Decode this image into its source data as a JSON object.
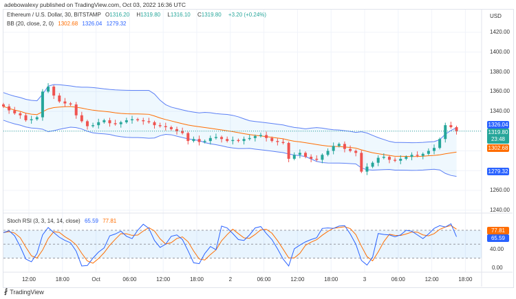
{
  "header": {
    "published": "adebowalexy published on TradingView.com, Oct 03, 2022 16:36 UTC"
  },
  "legend": {
    "symbol": "Ethereum / U.S. Dollar, 30, BITSTAMP",
    "o_label": "O",
    "o": "1316.20",
    "h_label": "H",
    "h": "1319.80",
    "l_label": "L",
    "l": "1316.10",
    "c_label": "C",
    "c": "1319.80",
    "change": "+3.20 (+0.24%)",
    "bb_label": "BB (20, close, 2, 0)",
    "bb_basis": "1302.68",
    "bb_upper": "1326.04",
    "bb_lower": "1279.32",
    "stoch_label": "Stoch RSI (3, 3, 14, 14, close)",
    "stoch_k": "65.59",
    "stoch_d": "77.81"
  },
  "price_axis": {
    "currency": "USD",
    "ticks": [
      "1420.00",
      "1400.00",
      "1380.00",
      "1360.00",
      "1340.00",
      "1260.00",
      "1240.00"
    ],
    "tags": {
      "upper": "1326.04",
      "last": "1319.80",
      "countdown": "23:48",
      "basis": "1302.68",
      "lower": "1279.32"
    }
  },
  "rsi_axis": {
    "ticks": [
      "40.00",
      "0.00"
    ],
    "tags": {
      "d": "77.81",
      "k": "65.59"
    }
  },
  "time_axis": [
    "12:00",
    "18:00",
    "Oct",
    "06:00",
    "12:00",
    "18:00",
    "2",
    "06:00",
    "12:00",
    "18:00",
    "3",
    "06:00",
    "12:00",
    "18:00"
  ],
  "colors": {
    "up": "#26a69a",
    "down": "#ef5350",
    "bb_basis": "#ff6d00",
    "bb_band": "#2962ff",
    "k": "#2962ff",
    "d": "#ff6d00"
  },
  "footer": {
    "brand": "TradingView"
  },
  "chart_data": {
    "type": "candlestick",
    "interval": "hourly approximation",
    "price_range": [
      1240,
      1420
    ],
    "closes": [
      1345,
      1341,
      1338,
      1336,
      1331,
      1332,
      1334,
      1360,
      1365,
      1356,
      1350,
      1348,
      1347,
      1336,
      1330,
      1325,
      1326,
      1329,
      1331,
      1328,
      1327,
      1329,
      1331,
      1332,
      1331,
      1330,
      1329,
      1326,
      1325,
      1324,
      1322,
      1320,
      1318,
      1310,
      1312,
      1309,
      1310,
      1313,
      1314,
      1312,
      1310,
      1311,
      1310,
      1312,
      1313,
      1315,
      1316,
      1313,
      1310,
      1309,
      1308,
      1292,
      1296,
      1298,
      1294,
      1292,
      1291,
      1296,
      1300,
      1305,
      1307,
      1302,
      1300,
      1298,
      1279,
      1284,
      1288,
      1293,
      1294,
      1291,
      1290,
      1292,
      1294,
      1296,
      1295,
      1297,
      1300,
      1303,
      1312,
      1326,
      1324,
      1320
    ],
    "stoch_k": [
      75,
      79,
      68,
      45,
      18,
      12,
      30,
      70,
      86,
      75,
      65,
      58,
      53,
      35,
      3,
      4,
      20,
      33,
      42,
      68,
      72,
      78,
      67,
      62,
      80,
      93,
      84,
      58,
      43,
      50,
      67,
      70,
      60,
      36,
      10,
      8,
      30,
      45,
      38,
      89,
      85,
      73,
      60,
      58,
      70,
      85,
      88,
      73,
      60,
      40,
      18,
      3,
      40,
      48,
      55,
      60,
      64,
      84,
      85,
      84,
      89,
      90,
      72,
      50,
      15,
      5,
      22,
      73,
      71,
      70,
      66,
      70,
      80,
      78,
      70,
      62,
      72,
      84,
      90,
      87,
      94,
      66
    ],
    "rsi_levels": [
      80,
      50,
      20
    ],
    "rsi_range": [
      0,
      100
    ]
  }
}
